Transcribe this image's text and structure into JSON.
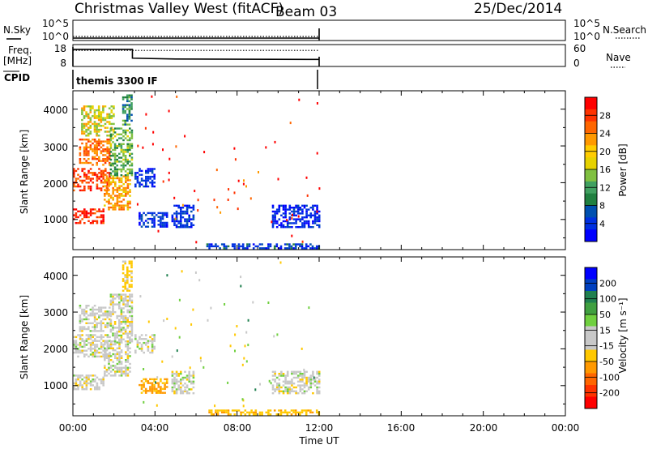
{
  "header": {
    "title": "Christmas Valley West (fitACF)",
    "beam": "Beam 03",
    "date": "25/Dec/2014"
  },
  "nsky_panel": {
    "left_label": "N.Sky",
    "left_ticks": [
      "10^5",
      "10^0"
    ],
    "right_ticks": [
      "10^5",
      "10^0"
    ],
    "right_label": "N.Search"
  },
  "freq_panel": {
    "left_label_1": "Freq.",
    "left_label_2": "[MHz]",
    "left_ticks": [
      "18",
      "8"
    ],
    "right_ticks": [
      "60",
      "0"
    ],
    "right_label": "Nave"
  },
  "cpid": {
    "label": "CPID",
    "value": "themis 3300 IF"
  },
  "power_panel": {
    "ylabel": "Slant Range [km]",
    "yticks": [
      "4000",
      "3000",
      "2000",
      "1000"
    ],
    "colorbar_label": "Power [dB]",
    "colorbar_ticks": [
      "28",
      "24",
      "20",
      "16",
      "12",
      "8",
      "4"
    ],
    "colorbar_colors": [
      "#ff0000",
      "#ff3300",
      "#ff6600",
      "#ff9900",
      "#ffcc00",
      "#e6d200",
      "#80c040",
      "#40a060",
      "#208040",
      "#0050b0",
      "#0030e0",
      "#0000ff"
    ]
  },
  "velocity_panel": {
    "ylabel": "Slant Range [km]",
    "yticks": [
      "4000",
      "3000",
      "2000",
      "1000"
    ],
    "colorbar_label": "Velocity [m s⁻¹]",
    "colorbar_ticks": [
      "200",
      "100",
      "50",
      "15",
      "-15",
      "-50",
      "-100",
      "-200"
    ],
    "colorbar_colors": [
      "#0000ff",
      "#0040c0",
      "#208050",
      "#40a040",
      "#70d040",
      "#c8c8c8",
      "#c8c8c8",
      "#ffc800",
      "#ff9900",
      "#ff6600",
      "#ff3300",
      "#ff0000"
    ]
  },
  "xaxis": {
    "ticks": [
      "00:00",
      "04:00",
      "08:00",
      "12:00",
      "16:00",
      "20:00",
      "00:00"
    ],
    "label": "Time UT"
  },
  "chart_data": [
    {
      "type": "line",
      "name_panel": "N.Sky / N.Search",
      "x_unit": "hours UT",
      "xlim": [
        0,
        24
      ],
      "ylim_log10": [
        0,
        5
      ],
      "series": [
        {
          "name": "N.Sky",
          "style": "solid",
          "x": [
            0,
            12
          ],
          "y_log10": [
            0.6,
            0.6
          ]
        },
        {
          "name": "N.Search",
          "style": "dotted",
          "x": [
            0,
            12
          ],
          "y_log10": [
            1.0,
            1.0
          ]
        }
      ]
    },
    {
      "type": "line",
      "name_panel": "Freq. / Nave",
      "x_unit": "hours UT",
      "xlim": [
        0,
        24
      ],
      "ylim_left": [
        8,
        18
      ],
      "ylim_right": [
        0,
        60
      ],
      "series": [
        {
          "name": "Freq. [MHz]",
          "style": "solid",
          "x": [
            0,
            2.9,
            2.9,
            5,
            8,
            12
          ],
          "y": [
            15.8,
            15.8,
            11.8,
            11.4,
            11.3,
            11.2
          ]
        },
        {
          "name": "Nave",
          "style": "dotted",
          "x": [
            0,
            12
          ],
          "y": [
            44,
            44
          ]
        }
      ]
    },
    {
      "type": "heatmap",
      "name_panel": "Power",
      "x_unit": "hours UT",
      "y_unit": "Slant Range [km]",
      "xlim": [
        0,
        24
      ],
      "ylim": [
        180,
        4500
      ],
      "value_unit": "dB",
      "colorbar_range": [
        0,
        32
      ],
      "regions": [
        {
          "x": [
            0.0,
            1.5
          ],
          "y": [
            900,
            1300
          ],
          "value": 30
        },
        {
          "x": [
            0.0,
            1.8
          ],
          "y": [
            1800,
            2400
          ],
          "value": 28
        },
        {
          "x": [
            0.3,
            1.8
          ],
          "y": [
            2500,
            3200
          ],
          "value": 25
        },
        {
          "x": [
            0.4,
            2.0
          ],
          "y": [
            3300,
            4100
          ],
          "value": 18
        },
        {
          "x": [
            1.5,
            2.8
          ],
          "y": [
            1300,
            2200
          ],
          "value": 22
        },
        {
          "x": [
            1.8,
            2.9
          ],
          "y": [
            2200,
            3500
          ],
          "value": 14
        },
        {
          "x": [
            2.4,
            2.9
          ],
          "y": [
            3600,
            4400
          ],
          "value": 12
        },
        {
          "x": [
            3.0,
            4.0
          ],
          "y": [
            1900,
            2400
          ],
          "value": 5
        },
        {
          "x": [
            3.2,
            4.6
          ],
          "y": [
            800,
            1200
          ],
          "value": 6
        },
        {
          "x": [
            4.8,
            5.9
          ],
          "y": [
            800,
            1400
          ],
          "value": 6
        },
        {
          "x": [
            6.5,
            12.0
          ],
          "y": [
            200,
            350
          ],
          "value": 7
        },
        {
          "x": [
            9.7,
            12.0
          ],
          "y": [
            800,
            1400
          ],
          "value": 5
        }
      ]
    },
    {
      "type": "heatmap",
      "name_panel": "Velocity",
      "x_unit": "hours UT",
      "y_unit": "Slant Range [km]",
      "xlim": [
        0,
        24
      ],
      "ylim": [
        180,
        4500
      ],
      "value_unit": "m s^-1",
      "colorbar_range": [
        -250,
        250
      ],
      "regions": [
        {
          "x": [
            0.0,
            1.5
          ],
          "y": [
            900,
            1300
          ],
          "value": 0
        },
        {
          "x": [
            0.0,
            1.8
          ],
          "y": [
            1800,
            2400
          ],
          "value": 0
        },
        {
          "x": [
            0.3,
            1.8
          ],
          "y": [
            2500,
            3200
          ],
          "value": 0
        },
        {
          "x": [
            1.5,
            2.8
          ],
          "y": [
            1300,
            2200
          ],
          "value": 0
        },
        {
          "x": [
            1.8,
            2.9
          ],
          "y": [
            2200,
            3500
          ],
          "value": 0
        },
        {
          "x": [
            2.4,
            2.9
          ],
          "y": [
            3600,
            4400
          ],
          "value": -30
        },
        {
          "x": [
            3.0,
            4.0
          ],
          "y": [
            1900,
            2400
          ],
          "value": 0
        },
        {
          "x": [
            3.2,
            4.6
          ],
          "y": [
            800,
            1200
          ],
          "value": -60
        },
        {
          "x": [
            4.8,
            5.9
          ],
          "y": [
            800,
            1400
          ],
          "value": 0
        },
        {
          "x": [
            6.5,
            12.0
          ],
          "y": [
            200,
            350
          ],
          "value": -40
        },
        {
          "x": [
            9.7,
            12.0
          ],
          "y": [
            800,
            1400
          ],
          "value": 0
        }
      ]
    }
  ]
}
